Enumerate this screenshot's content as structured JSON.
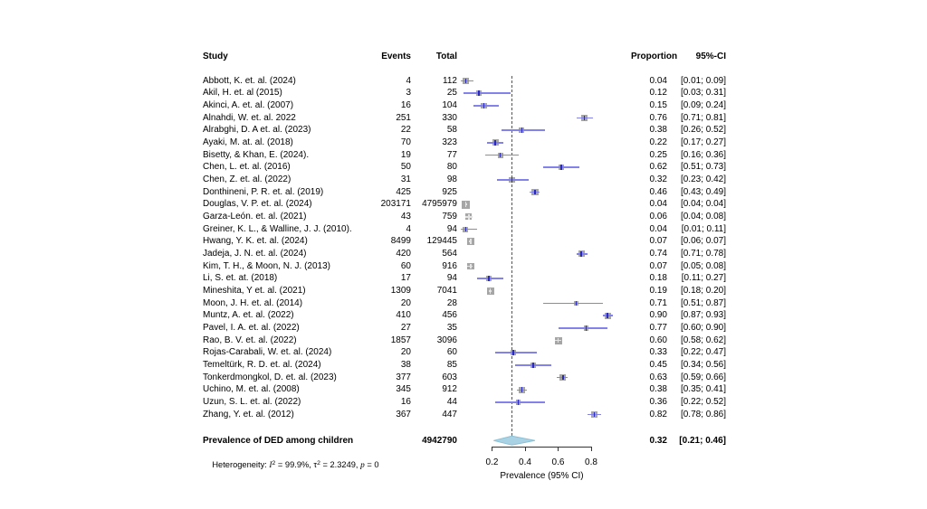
{
  "chart_data": {
    "type": "forest",
    "columns": {
      "study": "Study",
      "events": "Events",
      "total": "Total",
      "proportion": "Proportion",
      "ci": "95%-CI"
    },
    "studies": [
      {
        "name": "Abbott, K. et. al. (2024)",
        "events": 4,
        "total": 112,
        "proportion": "0.04",
        "p": 0.04,
        "ci": [
          0.01,
          0.09
        ],
        "ci_text": "[0.01; 0.09]",
        "box": 6.5
      },
      {
        "name": "Akil, H. et. al (2015)",
        "events": 3,
        "total": 25,
        "proportion": "0.12",
        "p": 0.12,
        "ci": [
          0.03,
          0.31
        ],
        "ci_text": "[0.03; 0.31]",
        "box": 5.5
      },
      {
        "name": "Akinci, A. et. al. (2007)",
        "events": 16,
        "total": 104,
        "proportion": "0.15",
        "p": 0.15,
        "ci": [
          0.09,
          0.24
        ],
        "ci_text": "[0.09; 0.24]",
        "box": 6.5
      },
      {
        "name": "Alnahdi, W. et. al. 2022",
        "events": 251,
        "total": 330,
        "proportion": "0.76",
        "p": 0.76,
        "ci": [
          0.71,
          0.81
        ],
        "ci_text": "[0.71; 0.81]",
        "box": 7
      },
      {
        "name": "Alrabghi, D. A et. al. (2023)",
        "events": 22,
        "total": 58,
        "proportion": "0.38",
        "p": 0.38,
        "ci": [
          0.26,
          0.52
        ],
        "ci_text": "[0.26; 0.52]",
        "box": 6
      },
      {
        "name": "Ayaki, M. at. al. (2018)",
        "events": 70,
        "total": 323,
        "proportion": "0.22",
        "p": 0.22,
        "ci": [
          0.17,
          0.27
        ],
        "ci_text": "[0.17; 0.27]",
        "box": 7
      },
      {
        "name": "Bisetty, & Khan, E. (2024).",
        "events": 19,
        "total": 77,
        "proportion": "0.25",
        "p": 0.25,
        "ci": [
          0.16,
          0.36
        ],
        "ci_text": "[0.16; 0.36]",
        "box": 6
      },
      {
        "name": "Chen, L. et. al. (2016)",
        "events": 50,
        "total": 80,
        "proportion": "0.62",
        "p": 0.62,
        "ci": [
          0.51,
          0.73
        ],
        "ci_text": "[0.51; 0.73]",
        "box": 6
      },
      {
        "name": "Chen, Z. et. al. (2022)",
        "events": 31,
        "total": 98,
        "proportion": "0.32",
        "p": 0.32,
        "ci": [
          0.23,
          0.42
        ],
        "ci_text": "[0.23; 0.42]",
        "box": 6.5
      },
      {
        "name": "Donthineni, P. R. et. al. (2019)",
        "events": 425,
        "total": 925,
        "proportion": "0.46",
        "p": 0.46,
        "ci": [
          0.43,
          0.49
        ],
        "ci_text": "[0.43; 0.49]",
        "box": 7.5
      },
      {
        "name": "Douglas, V. P. et. al. (2024)",
        "events": 203171,
        "total": 4795979,
        "proportion": "0.04",
        "p": 0.04,
        "ci": [
          0.04,
          0.04
        ],
        "ci_text": "[0.04; 0.04]",
        "box": 9
      },
      {
        "name": "Garza-León. et. al. (2021)",
        "events": 43,
        "total": 759,
        "proportion": "0.06",
        "p": 0.06,
        "ci": [
          0.04,
          0.08
        ],
        "ci_text": "[0.04; 0.08]",
        "box": 7
      },
      {
        "name": "Greiner, K. L., & Walline, J. J. (2010).",
        "events": 4,
        "total": 94,
        "proportion": "0.04",
        "p": 0.04,
        "ci": [
          0.01,
          0.11
        ],
        "ci_text": "[0.01; 0.11]",
        "box": 6
      },
      {
        "name": "Hwang, Y. K. et. al. (2024)",
        "events": 8499,
        "total": 129445,
        "proportion": "0.07",
        "p": 0.07,
        "ci": [
          0.06,
          0.07
        ],
        "ci_text": "[0.06; 0.07]",
        "box": 8.5
      },
      {
        "name": "Jadeja, J. N. et. al. (2024)",
        "events": 420,
        "total": 564,
        "proportion": "0.74",
        "p": 0.74,
        "ci": [
          0.71,
          0.78
        ],
        "ci_text": "[0.71; 0.78]",
        "box": 7
      },
      {
        "name": "Kim, T. H., & Moon, N. J. (2013)",
        "events": 60,
        "total": 916,
        "proportion": "0.07",
        "p": 0.07,
        "ci": [
          0.05,
          0.08
        ],
        "ci_text": "[0.05; 0.08]",
        "box": 7.5
      },
      {
        "name": "Li, S. et. at. (2018)",
        "events": 17,
        "total": 94,
        "proportion": "0.18",
        "p": 0.18,
        "ci": [
          0.11,
          0.27
        ],
        "ci_text": "[0.11; 0.27]",
        "box": 6
      },
      {
        "name": "Mineshita, Y et. al. (2021)",
        "events": 1309,
        "total": 7041,
        "proportion": "0.19",
        "p": 0.19,
        "ci": [
          0.18,
          0.2
        ],
        "ci_text": "[0.18; 0.20]",
        "box": 8
      },
      {
        "name": "Moon, J. H. et. al. (2014)",
        "events": 20,
        "total": 28,
        "proportion": "0.71",
        "p": 0.71,
        "ci": [
          0.51,
          0.87
        ],
        "ci_text": "[0.51; 0.87]",
        "box": 5.5
      },
      {
        "name": "Muntz, A. et. al. (2022)",
        "events": 410,
        "total": 456,
        "proportion": "0.90",
        "p": 0.9,
        "ci": [
          0.87,
          0.93
        ],
        "ci_text": "[0.87; 0.93]",
        "box": 7
      },
      {
        "name": "Pavel, I. A. et. al. (2022)",
        "events": 27,
        "total": 35,
        "proportion": "0.77",
        "p": 0.77,
        "ci": [
          0.6,
          0.9
        ],
        "ci_text": "[0.60; 0.90]",
        "box": 5.5
      },
      {
        "name": "Rao, B. V. et. al. (2022)",
        "events": 1857,
        "total": 3096,
        "proportion": "0.60",
        "p": 0.6,
        "ci": [
          0.58,
          0.62
        ],
        "ci_text": "[0.58; 0.62]",
        "box": 8
      },
      {
        "name": "Rojas-Carabali, W. et. al. (2024)",
        "events": 20,
        "total": 60,
        "proportion": "0.33",
        "p": 0.33,
        "ci": [
          0.22,
          0.47
        ],
        "ci_text": "[0.22; 0.47]",
        "box": 6
      },
      {
        "name": "Temeltürk, R. D. et. al. (2024)",
        "events": 38,
        "total": 85,
        "proportion": "0.45",
        "p": 0.45,
        "ci": [
          0.34,
          0.56
        ],
        "ci_text": "[0.34; 0.56]",
        "box": 6
      },
      {
        "name": "Tonkerdmongkol, D. et. al. (2023)",
        "events": 377,
        "total": 603,
        "proportion": "0.63",
        "p": 0.63,
        "ci": [
          0.59,
          0.66
        ],
        "ci_text": "[0.59; 0.66]",
        "box": 7
      },
      {
        "name": "Uchino, M. et. al. (2008)",
        "events": 345,
        "total": 912,
        "proportion": "0.38",
        "p": 0.38,
        "ci": [
          0.35,
          0.41
        ],
        "ci_text": "[0.35; 0.41]",
        "box": 7.5
      },
      {
        "name": "Uzun, S. L. et. al. (2022)",
        "events": 16,
        "total": 44,
        "proportion": "0.36",
        "p": 0.36,
        "ci": [
          0.22,
          0.52
        ],
        "ci_text": "[0.22; 0.52]",
        "box": 5.5
      },
      {
        "name": "Zhang, Y. et. al. (2012)",
        "events": 367,
        "total": 447,
        "proportion": "0.82",
        "p": 0.82,
        "ci": [
          0.78,
          0.86
        ],
        "ci_text": "[0.78; 0.86]",
        "box": 7
      }
    ],
    "summary": {
      "label": "Prevalence of DED among children",
      "total": 4942790,
      "proportion": "0.32",
      "p": 0.32,
      "ci": [
        0.21,
        0.46
      ],
      "ci_text": "[0.21; 0.46]"
    },
    "heterogeneity": {
      "prefix": "Heterogeneity: ",
      "i_stat": "I",
      "i_exp": "2",
      "i_rest": " = 99.9%, τ",
      "tau_exp": "2",
      "tau_rest": " = 2.3249, ",
      "p_stat": "p",
      "p_rest": " = 0"
    },
    "axis": {
      "ticks": [
        0.2,
        0.4,
        0.6,
        0.8
      ],
      "label": "Prevalence (95% CI)",
      "xlim": [
        0,
        1
      ]
    },
    "reference_line": 0.32,
    "legend_position": "none",
    "grid": false,
    "colors": {
      "square": "#a6a6a6",
      "ci_line": "#8282ea",
      "point": "#2a2ac0",
      "inside_marker": "#e4e4e4",
      "diamond_fill": "#a9d2e4",
      "diamond_stroke": "#8cc0d5",
      "axis": "#333333",
      "dashed_line": "#555555",
      "text": "#000000",
      "background": "#ffffff"
    }
  }
}
